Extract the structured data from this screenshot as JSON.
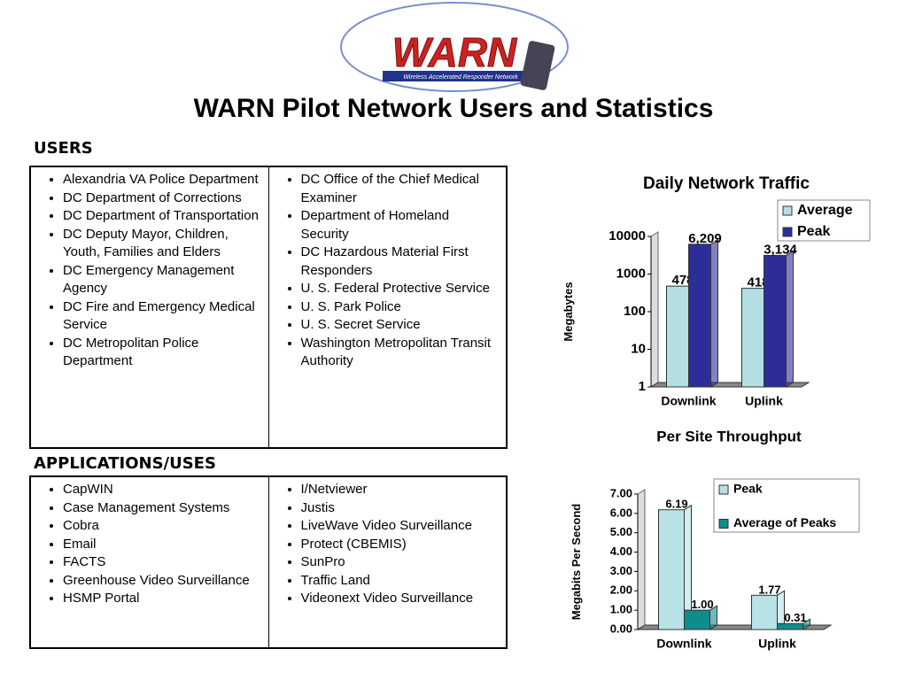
{
  "logo": {
    "text": "WARN",
    "subtitle": "Wireless Accelerated Responder Network"
  },
  "title": "WARN Pilot Network Users and Statistics",
  "users": {
    "heading": "USERS",
    "columns": [
      [
        "Alexandria VA Police Department",
        "DC Department of Corrections",
        "DC Department of Transportation",
        "DC Deputy Mayor, Children, Youth, Families and Elders",
        "DC Emergency Management Agency",
        "DC Fire and Emergency Medical Service",
        "DC Metropolitan Police Department"
      ],
      [
        "DC Office of the Chief Medical Examiner",
        "Department of Homeland Security",
        "DC Hazardous Material First Responders",
        "U. S. Federal Protective Service",
        "U. S. Park Police",
        "U. S. Secret Service",
        "Washington Metropolitan Transit Authority"
      ]
    ]
  },
  "applications": {
    "heading": "APPLICATIONS/USES",
    "columns": [
      [
        "CapWIN",
        "Case Management Systems",
        "Cobra",
        "Email",
        "FACTS",
        "Greenhouse Video Surveillance",
        "HSMP Portal"
      ],
      [
        "I/Netviewer",
        "Justis",
        "LiveWave Video Surveillance",
        "Protect (CBEMIS)",
        "SunPro",
        "Traffic Land",
        "Videonext Video Surveillance"
      ]
    ]
  },
  "chart_data": [
    {
      "type": "bar",
      "title": "Daily Network Traffic",
      "y_label": "Megabytes",
      "categories": [
        "Downlink",
        "Uplink"
      ],
      "series": [
        {
          "name": "Average",
          "color": "#b3dfe3",
          "values": [
            478,
            418
          ]
        },
        {
          "name": "Peak",
          "color": "#2d2d9a",
          "values": [
            6209,
            3134
          ],
          "value_labels": [
            "6,209",
            "3,134"
          ]
        }
      ],
      "log_scale": true,
      "ylim": [
        1,
        10000
      ],
      "yticks": [
        1,
        10,
        100,
        1000,
        10000
      ],
      "legend": "top-right"
    },
    {
      "type": "bar",
      "title": "Per Site Throughput",
      "y_label": "Megabits Per Second",
      "categories": [
        "Downlink",
        "Uplink"
      ],
      "series": [
        {
          "name": "Peak",
          "color": "#b8e2e6",
          "values": [
            6.19,
            1.77
          ]
        },
        {
          "name": "Average of Peaks",
          "color": "#0f8c8c",
          "values": [
            1.0,
            0.31
          ],
          "value_labels": [
            "1.00",
            "0.31"
          ]
        }
      ],
      "log_scale": false,
      "ylim": [
        0,
        7
      ],
      "yticks": [
        {
          "value": 0,
          "label": "0.00"
        },
        {
          "value": 1,
          "label": "1.00"
        },
        {
          "value": 2,
          "label": "2.00"
        },
        {
          "value": 3,
          "label": "3.00"
        },
        {
          "value": 4,
          "label": "4.00"
        },
        {
          "value": 5,
          "label": "5.00"
        },
        {
          "value": 6,
          "label": "6.00"
        },
        {
          "value": 7,
          "label": "7.00"
        }
      ],
      "legend": "top-right"
    }
  ]
}
